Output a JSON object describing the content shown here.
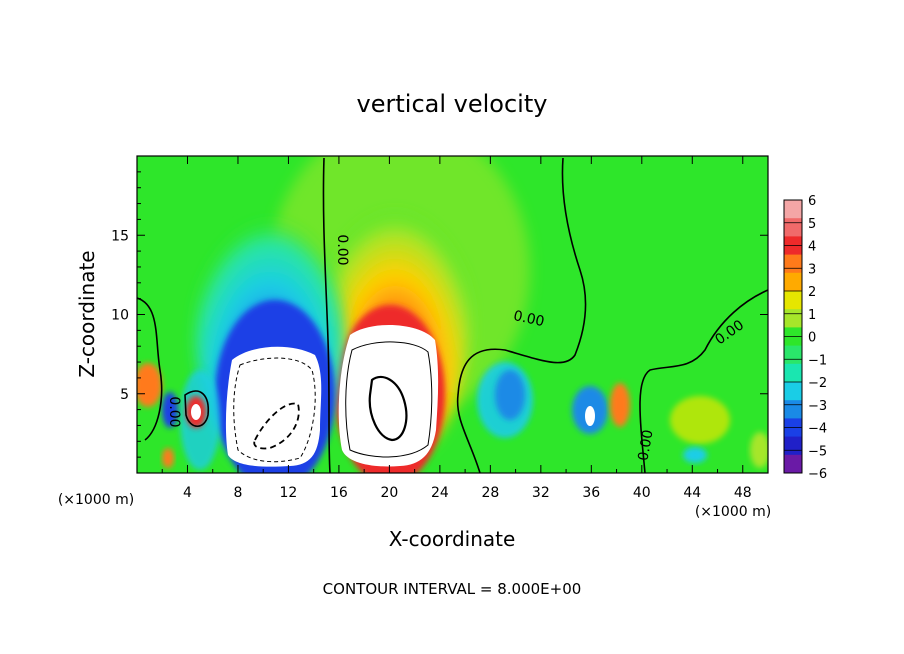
{
  "chart_data": {
    "type": "heatmap",
    "title": "vertical velocity",
    "xlabel": "X-coordinate",
    "ylabel": "Z-coordinate",
    "x_unit_label": "(×1000 m)",
    "z_unit_label": "(×1000 m)",
    "xlim": [
      0,
      50
    ],
    "ylim": [
      0,
      20
    ],
    "x_ticks": [
      4,
      8,
      12,
      16,
      20,
      24,
      28,
      32,
      36,
      40,
      44,
      48
    ],
    "y_ticks": [
      5,
      10,
      15
    ],
    "contour_interval_text": "CONTOUR INTERVAL = 8.000E+00",
    "contour_labels": [
      "0.00",
      "0.00",
      "0.00",
      "0.00",
      "0.00"
    ],
    "colorbar": {
      "ticks": [
        6,
        5,
        4,
        3,
        2,
        1,
        0,
        -1,
        -2,
        -3,
        -4,
        -5,
        -6
      ],
      "colors": [
        "#f4a6a6",
        "#f06a6a",
        "#ee2a2a",
        "#ff7a1a",
        "#ffaa00",
        "#e6e600",
        "#a6e62a",
        "#2ee62a",
        "#2ae66a",
        "#1ae6b0",
        "#1acde6",
        "#1a8ae6",
        "#1a40e6",
        "#2020c8",
        "#6a1aa6"
      ]
    },
    "features": [
      {
        "name": "downdraft core",
        "x_center": 10,
        "z_center": 4,
        "sign": "negative"
      },
      {
        "name": "updraft core",
        "x_center": 19.5,
        "z_center": 4.5,
        "sign": "positive"
      },
      {
        "name": "updraft plume",
        "x_center": 20,
        "z_center": 12,
        "sign": "positive"
      },
      {
        "name": "downdraft plume",
        "x_center": 10,
        "z_center": 11,
        "sign": "negative"
      },
      {
        "name": "small downdraft cells",
        "x_center": 30,
        "z_center": 4,
        "sign": "negative"
      },
      {
        "name": "small updraft",
        "x_center": 38,
        "z_center": 4,
        "sign": "positive"
      }
    ]
  }
}
